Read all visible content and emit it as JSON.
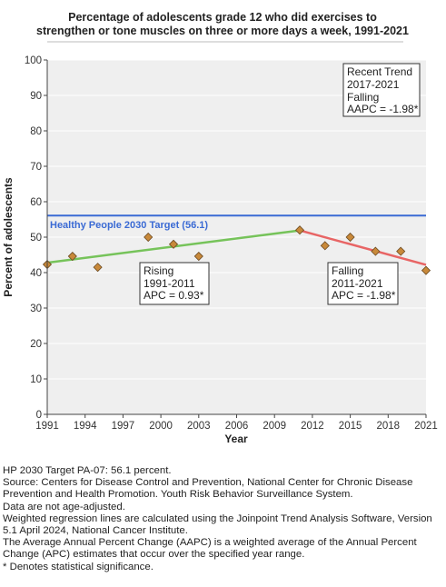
{
  "chart_data": {
    "type": "scatter",
    "title": [
      "Percentage of adolescents grade 12 who did exercises to",
      "strengthen or tone muscles on three or more days a week, 1991-2021"
    ],
    "xlabel": "Year",
    "ylabel": "Percent of adolescents",
    "xlim": [
      1991,
      2021
    ],
    "ylim": [
      0,
      100
    ],
    "x_ticks": [
      "1991",
      "1994",
      "1997",
      "2000",
      "2003",
      "2006",
      "2009",
      "2012",
      "2015",
      "2018",
      "2021"
    ],
    "y_ticks": [
      "0",
      "10",
      "20",
      "30",
      "40",
      "50",
      "60",
      "70",
      "80",
      "90",
      "100"
    ],
    "grid": "horizontal",
    "points": [
      {
        "x": 1991,
        "y": 42.3
      },
      {
        "x": 1993,
        "y": 44.6
      },
      {
        "x": 1995,
        "y": 41.5
      },
      {
        "x": 1999,
        "y": 50.0
      },
      {
        "x": 2001,
        "y": 48.0
      },
      {
        "x": 2003,
        "y": 44.6
      },
      {
        "x": 2011,
        "y": 52.0
      },
      {
        "x": 2013,
        "y": 47.6
      },
      {
        "x": 2015,
        "y": 50.0
      },
      {
        "x": 2017,
        "y": 46.0
      },
      {
        "x": 2019,
        "y": 46.0
      },
      {
        "x": 2021,
        "y": 40.6
      }
    ],
    "trend_lines": [
      {
        "x": [
          1991,
          2011
        ],
        "y": [
          42.8,
          51.9
        ],
        "color": "#76c35a"
      },
      {
        "x": [
          2011,
          2021
        ],
        "y": [
          51.9,
          42.2
        ],
        "color": "#e86565"
      }
    ],
    "target": {
      "value": 56.1,
      "label": "Healthy People 2030 Target (56.1)",
      "color": "#3a6ad4"
    },
    "point_color": "#c8893a",
    "annotations": [
      {
        "lines": [
          "Recent Trend",
          "2017-2021",
          "Falling",
          "AAPC = -1.98*"
        ]
      },
      {
        "lines": [
          "Rising",
          "1991-2011",
          "APC =  0.93*"
        ]
      },
      {
        "lines": [
          "Falling",
          "2011-2021",
          "APC = -1.98*"
        ]
      }
    ]
  },
  "footnotes": [
    "HP 2030 Target PA-07: 56.1 percent.",
    "Source: Centers for Disease Control and Prevention, National Center for Chronic Disease Prevention and Health Promotion. Youth Risk Behavior Surveillance System.",
    "Data are not age-adjusted.",
    "Weighted regression lines are calculated using the Joinpoint Trend Analysis Software, Version 5.1 April 2024, National Cancer Institute.",
    "The Average Annual Percent Change (AAPC) is a weighted average of the Annual Percent Change (APC) estimates that occur over the specified year range.",
    "* Denotes statistical significance."
  ]
}
